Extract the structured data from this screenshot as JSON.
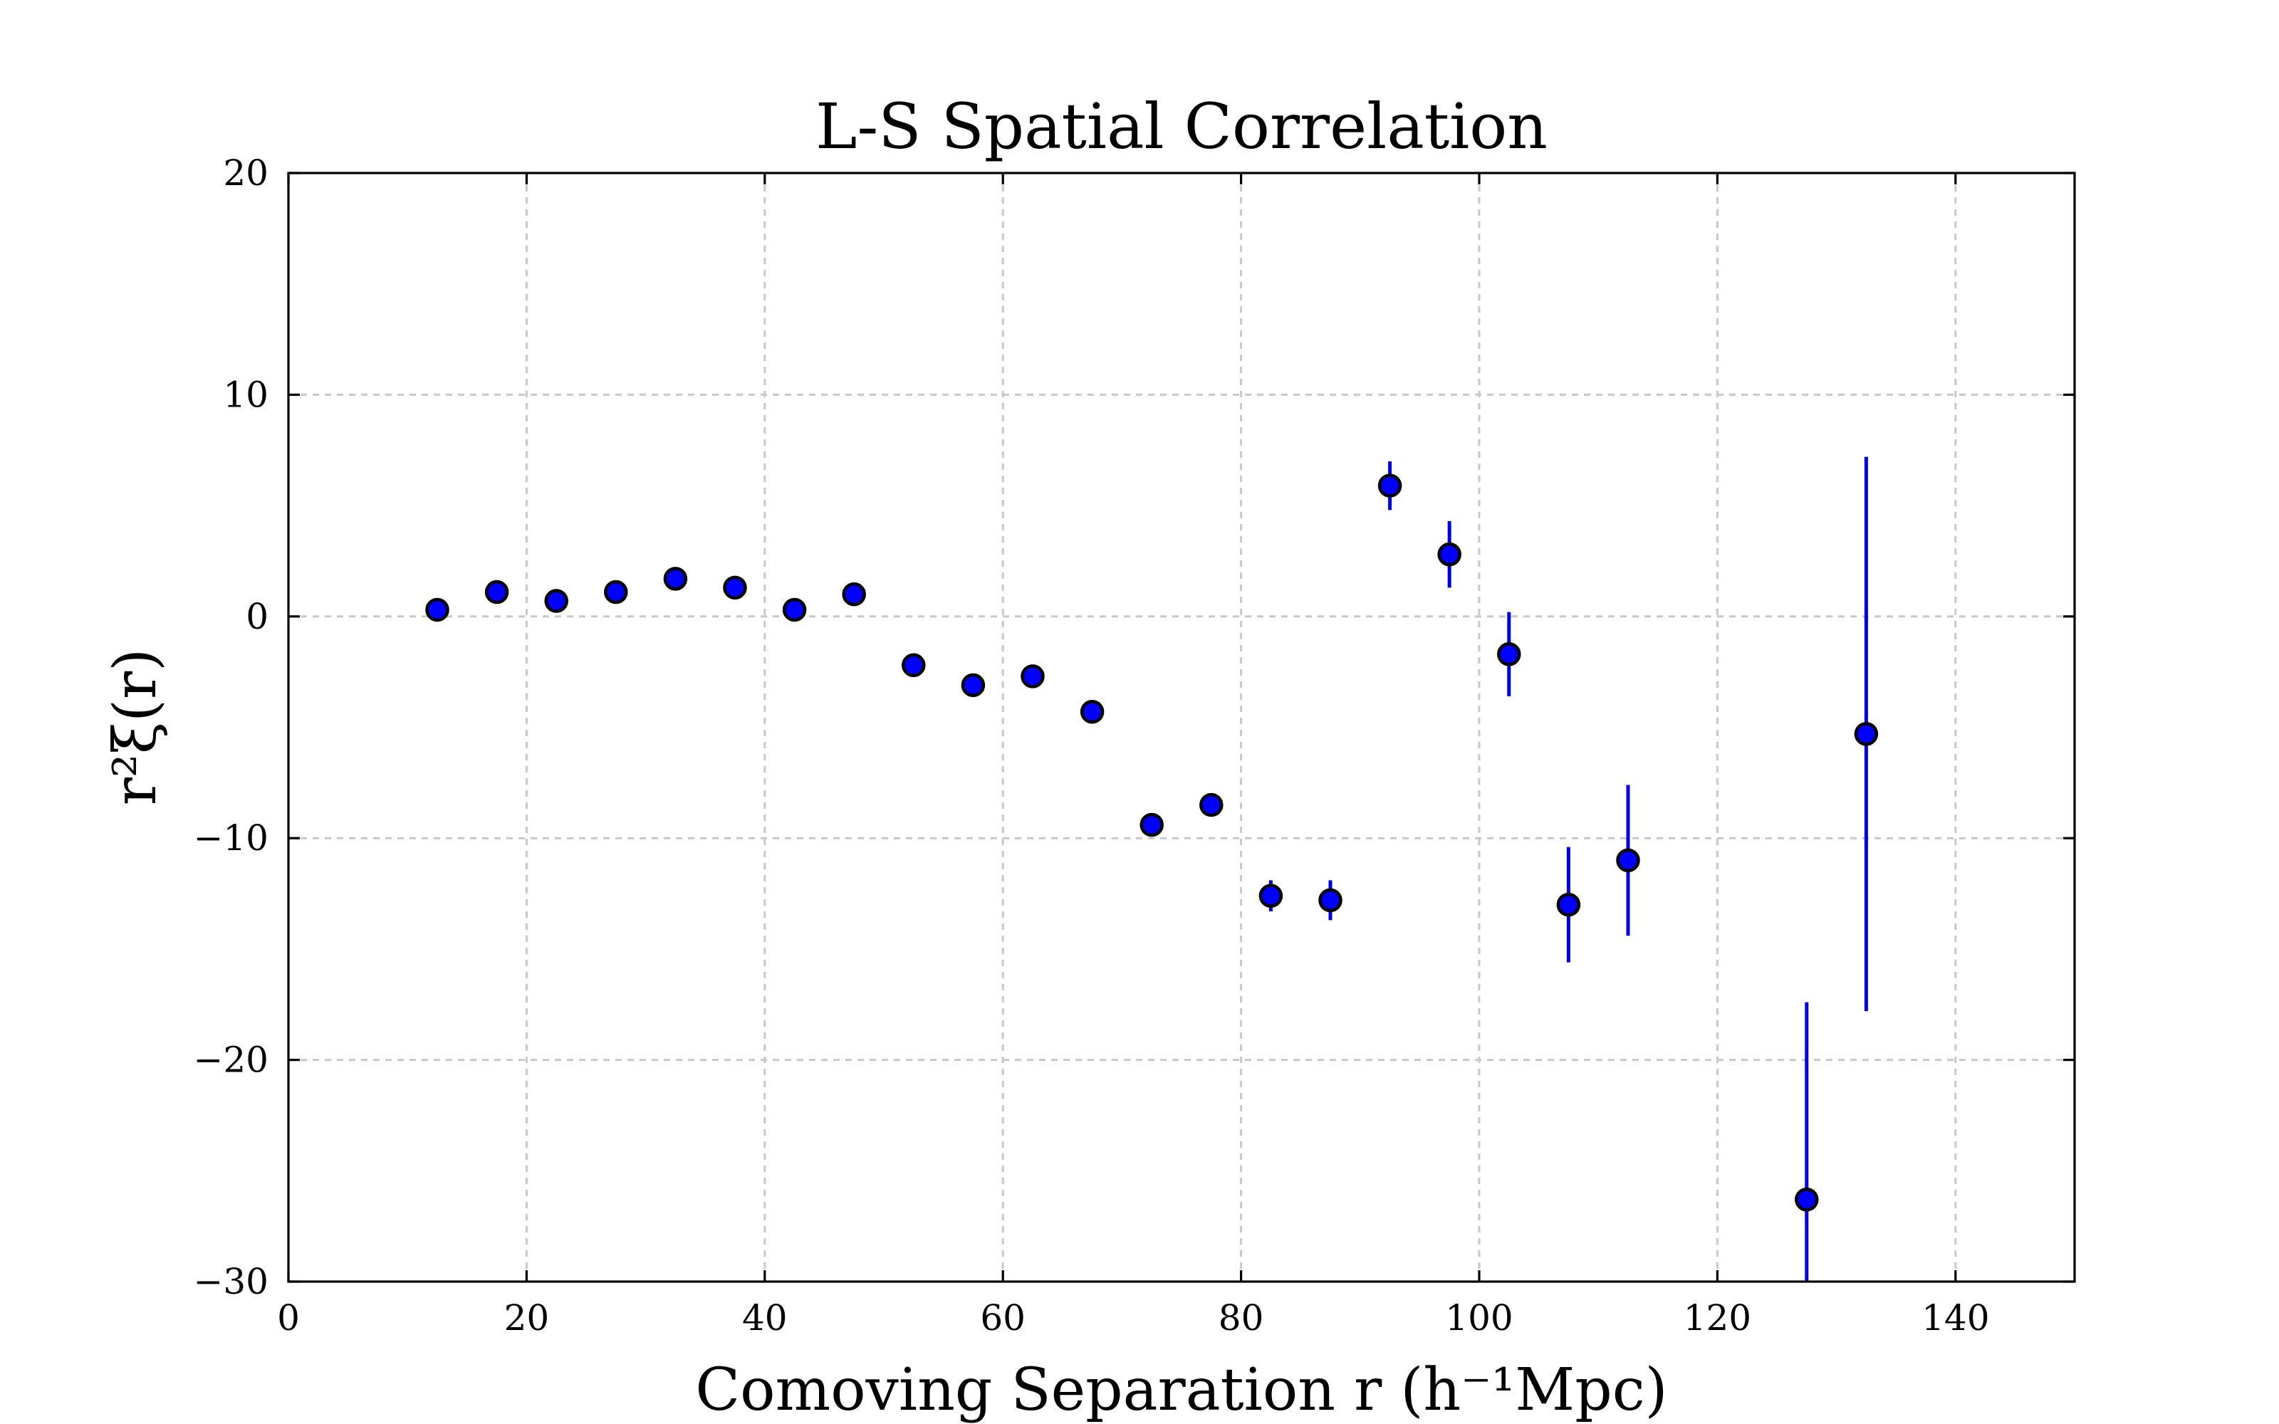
{
  "chart_data": {
    "type": "scatter",
    "title": "L-S Spatial Correlation",
    "xlabel": "Comoving Separation r (h⁻¹Mpc)",
    "ylabel": "r²ξ(r)",
    "xlim": [
      0,
      150
    ],
    "ylim": [
      -30,
      20
    ],
    "xticks": [
      0,
      20,
      40,
      60,
      80,
      100,
      120,
      140
    ],
    "yticks": [
      -30,
      -20,
      -10,
      0,
      10,
      20
    ],
    "xtick_labels": [
      "0",
      "20",
      "40",
      "60",
      "80",
      "100",
      "120",
      "140"
    ],
    "ytick_labels": [
      "−30",
      "−20",
      "−10",
      "0",
      "10",
      "20"
    ],
    "grid": true,
    "marker_color": "#0000ff",
    "errorbar_color": "#0000e6",
    "points": [
      {
        "x": 12.5,
        "y": 0.3,
        "err": 0.15
      },
      {
        "x": 17.5,
        "y": 1.1,
        "err": 0.15
      },
      {
        "x": 22.5,
        "y": 0.7,
        "err": 0.15
      },
      {
        "x": 27.5,
        "y": 1.1,
        "err": 0.15
      },
      {
        "x": 32.5,
        "y": 1.7,
        "err": 0.15
      },
      {
        "x": 37.5,
        "y": 1.3,
        "err": 0.15
      },
      {
        "x": 42.5,
        "y": 0.3,
        "err": 0.15
      },
      {
        "x": 47.5,
        "y": 1.0,
        "err": 0.2
      },
      {
        "x": 52.5,
        "y": -2.2,
        "err": 0.2
      },
      {
        "x": 57.5,
        "y": -3.1,
        "err": 0.2
      },
      {
        "x": 62.5,
        "y": -2.7,
        "err": 0.2
      },
      {
        "x": 67.5,
        "y": -4.3,
        "err": 0.3
      },
      {
        "x": 72.5,
        "y": -9.4,
        "err": 0.3
      },
      {
        "x": 77.5,
        "y": -8.5,
        "err": 0.4
      },
      {
        "x": 82.5,
        "y": -12.6,
        "err": 0.7
      },
      {
        "x": 87.5,
        "y": -12.8,
        "err": 0.9
      },
      {
        "x": 92.5,
        "y": 5.9,
        "err": 1.1
      },
      {
        "x": 97.5,
        "y": 2.8,
        "err": 1.5
      },
      {
        "x": 102.5,
        "y": -1.7,
        "err": 1.9
      },
      {
        "x": 107.5,
        "y": -13.0,
        "err": 2.6
      },
      {
        "x": 112.5,
        "y": -11.0,
        "err": 3.4
      },
      {
        "x": 127.5,
        "y": -26.3,
        "err": 8.9
      },
      {
        "x": 132.5,
        "y": -5.3,
        "err": 12.5
      }
    ]
  }
}
